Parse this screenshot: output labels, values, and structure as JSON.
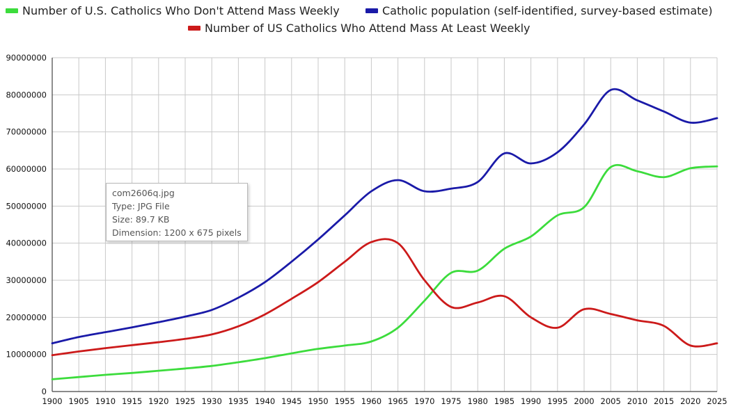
{
  "chart_data": {
    "type": "line",
    "title": "",
    "xlabel": "",
    "ylabel": "",
    "xlim": [
      1900,
      2025
    ],
    "ylim": [
      0,
      90000000
    ],
    "x_ticks": [
      1900,
      1905,
      1910,
      1915,
      1920,
      1925,
      1930,
      1935,
      1940,
      1945,
      1950,
      1955,
      1960,
      1965,
      1970,
      1975,
      1980,
      1985,
      1990,
      1995,
      2000,
      2005,
      2010,
      2015,
      2020,
      2025
    ],
    "y_ticks": [
      0,
      10000000,
      20000000,
      30000000,
      40000000,
      50000000,
      60000000,
      70000000,
      80000000,
      90000000
    ],
    "y_tick_labels": [
      "0",
      "10000000",
      "20000000",
      "30000000",
      "40000000",
      "50000000",
      "60000000",
      "70000000",
      "80000000",
      "90000000"
    ],
    "grid": true,
    "legend_position": "top",
    "series": [
      {
        "name": "Number of U.S. Catholics Who Don't Attend Mass Weekly",
        "color": "#3cdc3c",
        "x": [
          1900,
          1905,
          1910,
          1915,
          1920,
          1925,
          1930,
          1935,
          1940,
          1945,
          1950,
          1955,
          1960,
          1965,
          1970,
          1975,
          1980,
          1985,
          1990,
          1995,
          2000,
          2005,
          2010,
          2015,
          2020,
          2025
        ],
        "y": [
          3300000,
          3900000,
          4500000,
          5000000,
          5600000,
          6200000,
          6900000,
          7900000,
          9000000,
          10300000,
          11500000,
          12400000,
          13500000,
          17200000,
          24500000,
          32000000,
          32600000,
          38500000,
          41800000,
          47500000,
          49700000,
          60500000,
          59400000,
          57800000,
          60200000,
          60700000
        ]
      },
      {
        "name": "Catholic population (self-identified, survey-based estimate)",
        "color": "#1a1aa8",
        "x": [
          1900,
          1905,
          1910,
          1915,
          1920,
          1925,
          1930,
          1935,
          1940,
          1945,
          1950,
          1955,
          1960,
          1965,
          1970,
          1975,
          1980,
          1985,
          1990,
          1995,
          2000,
          2005,
          2010,
          2015,
          2020,
          2025
        ],
        "y": [
          13000000,
          14700000,
          16000000,
          17300000,
          18700000,
          20200000,
          22000000,
          25300000,
          29500000,
          35000000,
          41000000,
          47500000,
          54000000,
          57000000,
          54000000,
          54700000,
          56500000,
          64200000,
          61500000,
          64500000,
          72000000,
          81300000,
          78500000,
          75500000,
          72500000,
          73700000
        ]
      },
      {
        "name": "Number of US Catholics Who Attend Mass At Least Weekly",
        "color": "#cc1a1a",
        "x": [
          1900,
          1905,
          1910,
          1915,
          1920,
          1925,
          1930,
          1935,
          1940,
          1945,
          1950,
          1955,
          1960,
          1965,
          1970,
          1975,
          1980,
          1985,
          1990,
          1995,
          2000,
          2005,
          2010,
          2015,
          2020,
          2025
        ],
        "y": [
          9800000,
          10800000,
          11700000,
          12500000,
          13300000,
          14200000,
          15400000,
          17600000,
          20800000,
          25000000,
          29500000,
          35000000,
          40300000,
          40000000,
          30000000,
          22800000,
          24000000,
          25700000,
          20000000,
          17200000,
          22200000,
          20900000,
          19200000,
          17700000,
          12400000,
          13000000
        ]
      }
    ]
  },
  "tooltip": {
    "filename": "com2606q.jpg",
    "type": "Type: JPG File",
    "size": "Size: 89.7 KB",
    "dimension": "Dimension: 1200 x 675 pixels"
  }
}
